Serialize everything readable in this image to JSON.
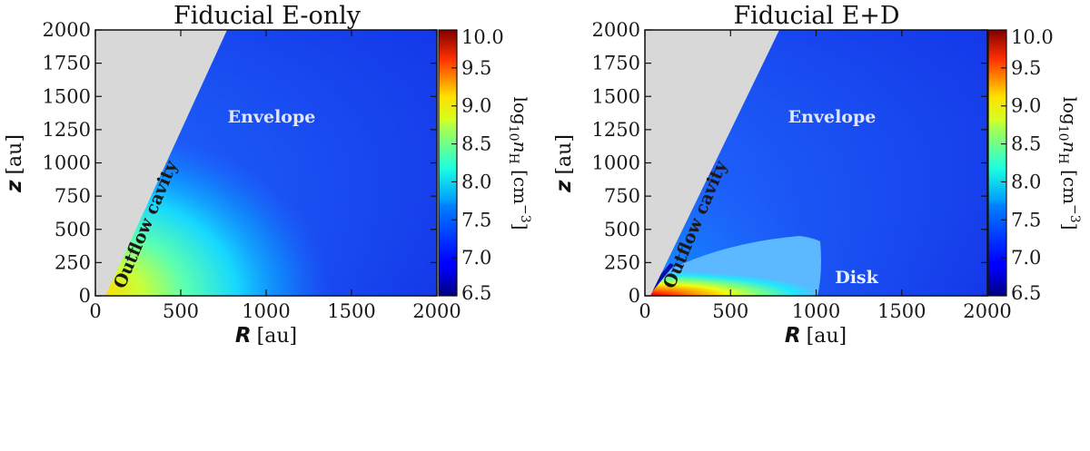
{
  "chart_data": [
    {
      "type": "heatmap",
      "title": "Fiducial E-only",
      "xlabel_var": "R",
      "xlabel_unit": "[au]",
      "ylabel_var": "z",
      "ylabel_unit": "[au]",
      "xlim": [
        0,
        2000
      ],
      "ylim": [
        0,
        2000
      ],
      "x_ticks": [
        "0",
        "500",
        "1000",
        "1500",
        "2000"
      ],
      "y_ticks": [
        "0",
        "250",
        "500",
        "750",
        "1000",
        "1250",
        "1500",
        "1750",
        "2000"
      ],
      "colorbar": {
        "label": "log₁₀nʜ [cm⁻³]",
        "label_parts": {
          "prefix": "log",
          "sub1": "10",
          "var": "n",
          "sub2": "H",
          "unit": " [cm",
          "sup": "−3",
          "close": "]"
        },
        "range": [
          6.5,
          10.0
        ],
        "ticks": [
          "6.5",
          "7.0",
          "7.5",
          "8.0",
          "8.5",
          "9.0",
          "9.5",
          "10.0"
        ],
        "colormap": "jet"
      },
      "annotations": [
        {
          "text": "Envelope",
          "at_au": [
            1000,
            1520
          ],
          "color": "#e0e6ff"
        },
        {
          "text": "Outflow cavity",
          "at_au": [
            230,
            930
          ],
          "color": "#1a1a1a",
          "rotation_deg": -67
        }
      ],
      "regions": {
        "outflow_cavity_edge_au": [
          [
            0,
            0
          ],
          [
            60,
            0
          ],
          [
            800,
            2000
          ],
          [
            0,
            2000
          ]
        ],
        "envelope_peak_log_n": 8.8,
        "envelope_floor_log_n": 7.0
      }
    },
    {
      "type": "heatmap",
      "title": "Fiducial E+D",
      "xlabel_var": "R",
      "xlabel_unit": "[au]",
      "ylabel_var": "z",
      "ylabel_unit": "[au]",
      "xlim": [
        0,
        2000
      ],
      "ylim": [
        0,
        2000
      ],
      "x_ticks": [
        "0",
        "500",
        "1000",
        "1500",
        "2000"
      ],
      "y_ticks": [
        "0",
        "250",
        "500",
        "750",
        "1000",
        "1250",
        "1500",
        "1750",
        "2000"
      ],
      "colorbar": {
        "label": "log₁₀nʜ [cm⁻³]",
        "label_parts": {
          "prefix": "log",
          "sub1": "10",
          "var": "n",
          "sub2": "H",
          "unit": " [cm",
          "sup": "−3",
          "close": "]"
        },
        "range": [
          6.5,
          10.0
        ],
        "ticks": [
          "6.5",
          "7.0",
          "7.5",
          "8.0",
          "8.5",
          "9.0",
          "9.5",
          "10.0"
        ],
        "colormap": "jet"
      },
      "annotations": [
        {
          "text": "Envelope",
          "at_au": [
            1000,
            1520
          ],
          "color": "#e0e6ff"
        },
        {
          "text": "Outflow cavity",
          "at_au": [
            230,
            930
          ],
          "color": "#1a1a1a",
          "rotation_deg": -67
        },
        {
          "text": "Disk",
          "at_au": [
            1190,
            145
          ],
          "color": "#e8f0ff"
        }
      ],
      "regions": {
        "outflow_cavity_edge_au": [
          [
            0,
            0
          ],
          [
            60,
            0
          ],
          [
            800,
            2000
          ],
          [
            0,
            2000
          ]
        ],
        "disk_outer_radius_au": 1000,
        "disk_peak_log_n": 9.9
      }
    }
  ]
}
